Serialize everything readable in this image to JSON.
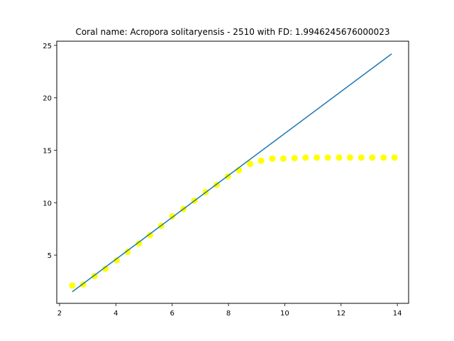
{
  "chart_data": {
    "type": "scatter",
    "title": "Coral name: Acropora solitaryensis - 2510 with FD: 1.9946245676000023",
    "xlabel": "",
    "ylabel": "",
    "xlim": [
      1.9,
      14.4
    ],
    "ylim": [
      0.4,
      25.4
    ],
    "xticks": [
      2,
      4,
      6,
      8,
      10,
      12,
      14
    ],
    "yticks": [
      5,
      10,
      15,
      20,
      25
    ],
    "grid": false,
    "series": [
      {
        "kind": "scatter",
        "color": "#ffff00",
        "x": [
          2.45,
          2.84,
          3.24,
          3.63,
          4.03,
          4.42,
          4.82,
          5.21,
          5.61,
          6.0,
          6.4,
          6.79,
          7.19,
          7.58,
          7.98,
          8.37,
          8.77,
          9.16,
          9.56,
          9.95,
          10.35,
          10.74,
          11.14,
          11.53,
          11.93,
          12.32,
          12.72,
          13.11,
          13.51,
          13.9
        ],
        "y": [
          2.1,
          2.2,
          3.0,
          3.7,
          4.5,
          5.3,
          6.1,
          6.9,
          7.8,
          8.7,
          9.4,
          10.2,
          11.0,
          11.7,
          12.5,
          13.1,
          13.7,
          14.0,
          14.2,
          14.2,
          14.25,
          14.3,
          14.3,
          14.3,
          14.3,
          14.3,
          14.3,
          14.3,
          14.3,
          14.3
        ]
      },
      {
        "kind": "line",
        "color": "#1f77b4",
        "x": [
          2.45,
          13.8
        ],
        "y": [
          1.5,
          24.2
        ]
      }
    ]
  }
}
